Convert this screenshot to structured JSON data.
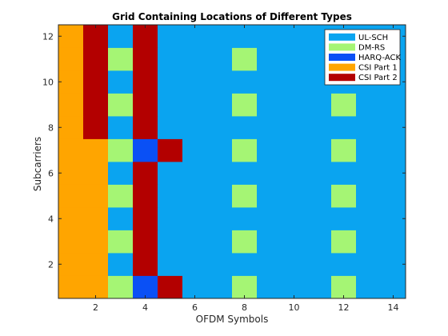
{
  "chart_data": {
    "type": "heatmap",
    "title": "Grid Containing Locations of Different Types",
    "xlabel": "OFDM Symbols",
    "ylabel": "Subcarriers",
    "xlim": [
      0.5,
      14.5
    ],
    "ylim": [
      0.5,
      12.5
    ],
    "xticks": [
      2,
      4,
      6,
      8,
      10,
      12,
      14
    ],
    "yticks": [
      2,
      4,
      6,
      8,
      10,
      12
    ],
    "grid": false,
    "legend_position": "top-right",
    "legend": [
      {
        "key": "ULSCH",
        "label": "UL-SCH",
        "color": "#0aa4f0"
      },
      {
        "key": "DMRS",
        "label": "DM-RS",
        "color": "#a5f574"
      },
      {
        "key": "HARQ",
        "label": "HARQ-ACK",
        "color": "#0a50f5"
      },
      {
        "key": "CSI1",
        "label": "CSI Part 1",
        "color": "#ffa500"
      },
      {
        "key": "CSI2",
        "label": "CSI Part 2",
        "color": "#b30000"
      }
    ],
    "cell_types": {
      "0": "ULSCH",
      "1": "DMRS",
      "2": "HARQ",
      "3": "CSI1",
      "4": "CSI2"
    },
    "rows_subcarrier_1_to_12": [
      [
        3,
        3,
        1,
        2,
        4,
        0,
        0,
        1,
        0,
        0,
        0,
        1,
        0,
        0
      ],
      [
        3,
        3,
        0,
        4,
        0,
        0,
        0,
        0,
        0,
        0,
        0,
        0,
        0,
        0
      ],
      [
        3,
        3,
        1,
        4,
        0,
        0,
        0,
        1,
        0,
        0,
        0,
        1,
        0,
        0
      ],
      [
        3,
        3,
        0,
        4,
        0,
        0,
        0,
        0,
        0,
        0,
        0,
        0,
        0,
        0
      ],
      [
        3,
        3,
        1,
        4,
        0,
        0,
        0,
        1,
        0,
        0,
        0,
        1,
        0,
        0
      ],
      [
        3,
        3,
        0,
        4,
        0,
        0,
        0,
        0,
        0,
        0,
        0,
        0,
        0,
        0
      ],
      [
        3,
        3,
        1,
        2,
        4,
        0,
        0,
        1,
        0,
        0,
        0,
        1,
        0,
        0
      ],
      [
        3,
        4,
        0,
        4,
        0,
        0,
        0,
        0,
        0,
        0,
        0,
        0,
        0,
        0
      ],
      [
        3,
        4,
        1,
        4,
        0,
        0,
        0,
        1,
        0,
        0,
        0,
        1,
        0,
        0
      ],
      [
        3,
        4,
        0,
        4,
        0,
        0,
        0,
        0,
        0,
        0,
        0,
        0,
        0,
        0
      ],
      [
        3,
        4,
        1,
        4,
        0,
        0,
        0,
        1,
        0,
        0,
        0,
        0,
        0,
        0
      ],
      [
        3,
        4,
        0,
        4,
        0,
        0,
        0,
        0,
        0,
        0,
        0,
        0,
        0,
        0
      ]
    ]
  }
}
